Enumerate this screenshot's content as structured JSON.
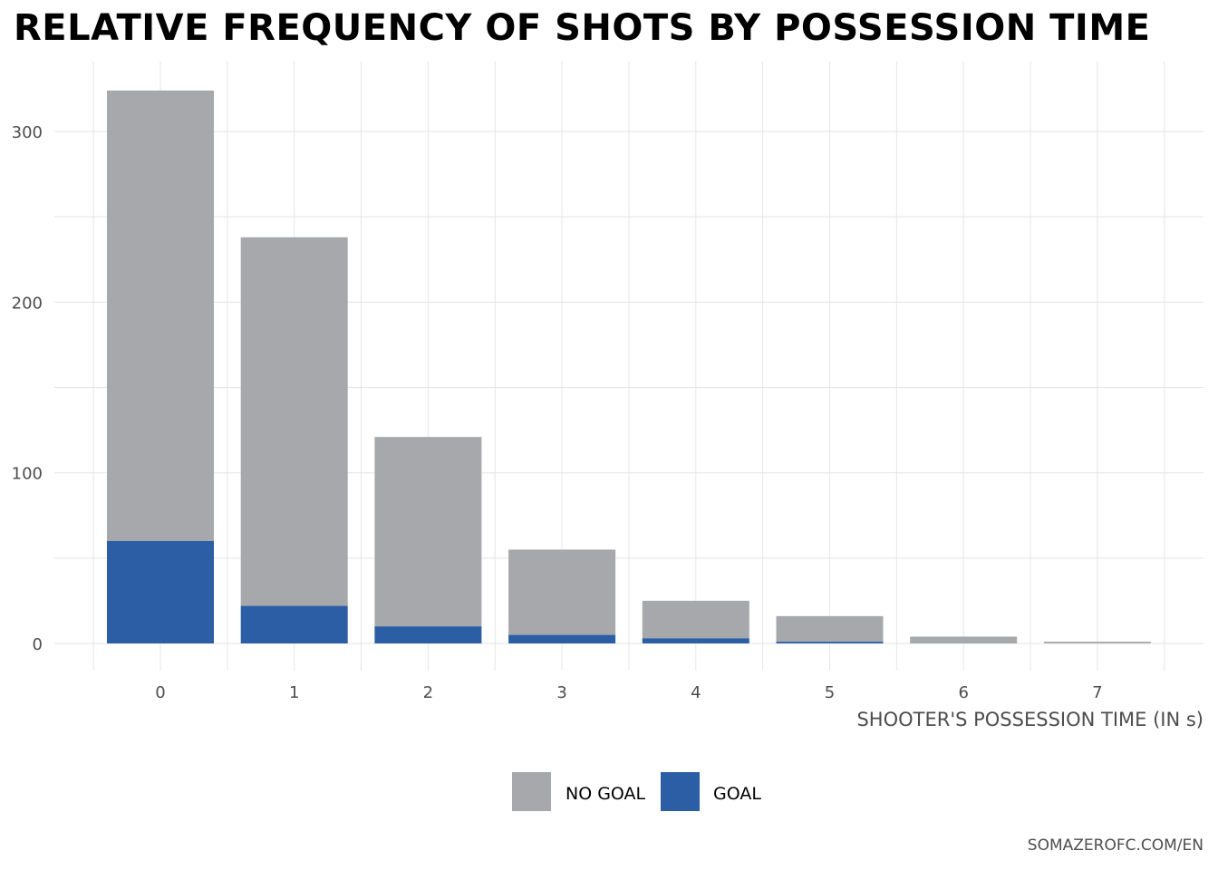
{
  "chart_data": {
    "type": "bar",
    "stacked": true,
    "title": "RELATIVE FREQUENCY OF SHOTS BY POSSESSION TIME",
    "xlabel": "SHOOTER'S POSSESSION TIME (IN s)",
    "ylabel": "",
    "categories": [
      "0",
      "1",
      "2",
      "3",
      "4",
      "5",
      "6",
      "7"
    ],
    "series": [
      {
        "name": "NO GOAL",
        "color": "#a7a8ab",
        "values": [
          264,
          216,
          111,
          50,
          22,
          15,
          4,
          1
        ]
      },
      {
        "name": "GOAL",
        "color": "#2b5ea5",
        "values": [
          60,
          22,
          10,
          5,
          3,
          1,
          0,
          0
        ]
      }
    ],
    "legend_order": [
      "NO GOAL",
      "GOAL"
    ],
    "yticks": [
      0,
      100,
      200,
      300
    ],
    "ylim": [
      0,
      330
    ],
    "grid": true,
    "legend_position": "bottom",
    "caption": "SOMAZEROFC.COM/EN"
  }
}
